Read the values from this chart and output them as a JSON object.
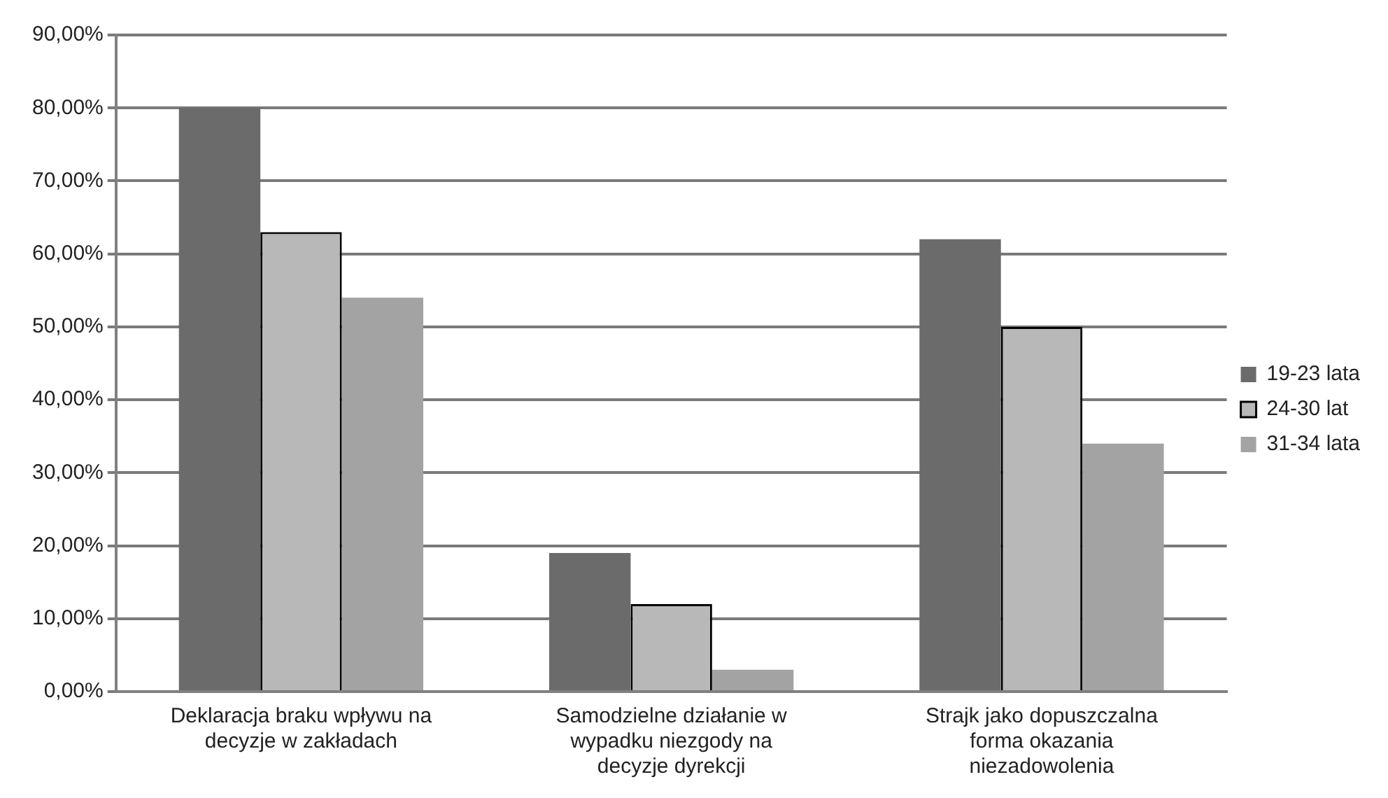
{
  "chart_data": {
    "type": "bar",
    "categories": [
      "Deklaracja braku wpływu na decyzje w zakładach",
      "Samodzielne działanie w wypadku niezgody na decyzje dyrekcji",
      "Strajk jako dopuszczalna forma okazania niezadowolenia"
    ],
    "series": [
      {
        "name": "19-23 lata",
        "color": "#6b6b6b",
        "values": [
          80,
          19,
          62
        ]
      },
      {
        "name": "24-30 lat",
        "color": "#b8b8b8",
        "values": [
          63,
          12,
          50
        ]
      },
      {
        "name": "31-34 lata",
        "color": "#a3a3a3",
        "values": [
          54,
          3,
          34
        ]
      }
    ],
    "ylim": [
      0,
      90
    ],
    "yticks": [
      {
        "value": 0,
        "label": "0,00%"
      },
      {
        "value": 10,
        "label": "10,00%"
      },
      {
        "value": 20,
        "label": "20,00%"
      },
      {
        "value": 30,
        "label": "30,00%"
      },
      {
        "value": 40,
        "label": "40,00%"
      },
      {
        "value": 50,
        "label": "50,00%"
      },
      {
        "value": 60,
        "label": "60,00%"
      },
      {
        "value": 70,
        "label": "70,00%"
      },
      {
        "value": 80,
        "label": "80,00%"
      },
      {
        "value": 90,
        "label": "90,00%"
      }
    ],
    "grid": "y",
    "legend": "right"
  }
}
